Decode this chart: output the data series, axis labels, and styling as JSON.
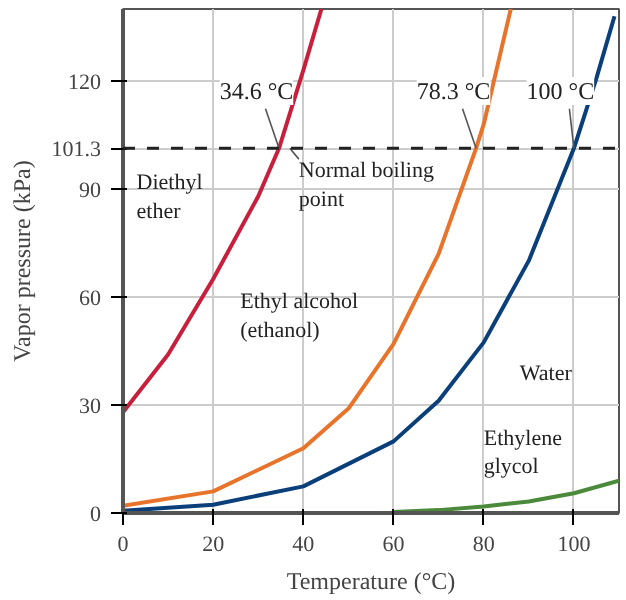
{
  "chart_data": {
    "type": "line",
    "xlabel": "Temperature (°C)",
    "ylabel": "Vapor pressure (kPa)",
    "xlim": [
      0,
      110
    ],
    "ylim": [
      0,
      140
    ],
    "xticks": [
      0,
      20,
      40,
      60,
      80,
      100
    ],
    "yticks": [
      0,
      30,
      60,
      90,
      101.3,
      120
    ],
    "grid": true,
    "line_style": "solid",
    "series": [
      {
        "name": "Diethyl ether",
        "color": "#c8203c",
        "x": [
          0,
          10,
          20,
          30,
          34.6,
          40,
          44
        ],
        "values": [
          28,
          44,
          65,
          88,
          101.3,
          123,
          140
        ]
      },
      {
        "name": "Ethyl alcohol (ethanol)",
        "color": "#e8732a",
        "x": [
          0,
          20,
          40,
          50,
          60,
          70,
          78.3,
          80,
          86
        ],
        "values": [
          2,
          6,
          18,
          29,
          47,
          72,
          101.3,
          108,
          140
        ]
      },
      {
        "name": "Water",
        "color": "#0a3f7a",
        "x": [
          0,
          20,
          40,
          60,
          70,
          80,
          90,
          100,
          105,
          109
        ],
        "values": [
          0.6,
          2.3,
          7.4,
          19.9,
          31.2,
          47.4,
          70.1,
          101.3,
          120.8,
          138
        ]
      },
      {
        "name": "Ethylene glycol",
        "color": "#4a8a3a",
        "x": [
          60,
          70,
          80,
          90,
          100,
          110
        ],
        "values": [
          0.3,
          0.8,
          1.8,
          3.2,
          5.5,
          9
        ]
      }
    ],
    "ref_lines": [
      {
        "axis": "y",
        "value": 101.3,
        "label": null,
        "color": "#222222",
        "line_style": "dashed"
      }
    ],
    "annotations": [
      {
        "text": "34.6 °C",
        "x": 34.6,
        "y": 101.3
      },
      {
        "text": "78.3 °C",
        "x": 78.3,
        "y": 101.3
      },
      {
        "text": "100 °C",
        "x": 100,
        "y": 101.3
      },
      {
        "text": "Normal boiling point",
        "x": 40,
        "y": 101.3
      }
    ]
  }
}
